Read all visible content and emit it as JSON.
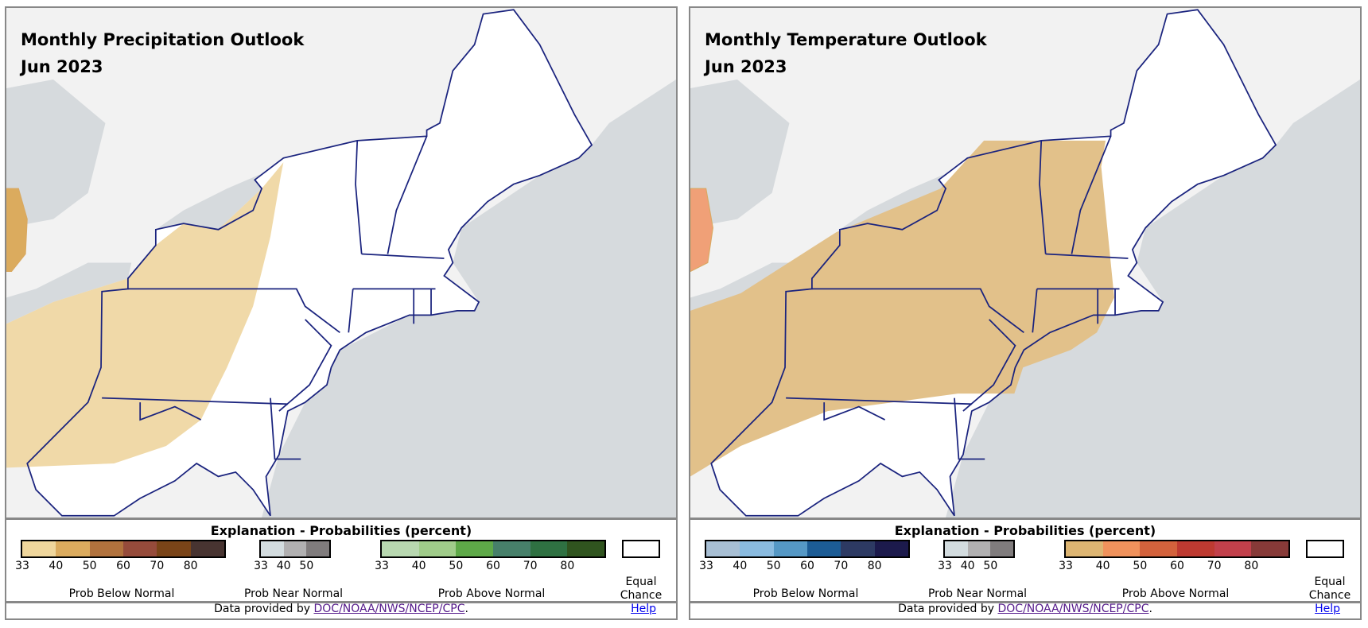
{
  "panels": [
    {
      "title": "Monthly Precipitation Outlook",
      "period": "Jun 2023",
      "legend": {
        "title": "Explanation - Probabilities (percent)",
        "below": {
          "label": "Prob Below Normal",
          "ticks": [
            "33",
            "40",
            "50",
            "60",
            "70",
            "80"
          ],
          "colors": [
            "#efd69c",
            "#dbab5e",
            "#b1723d",
            "#964b3b",
            "#7a4418",
            "#483431"
          ]
        },
        "near": {
          "label": "Prob Near Normal",
          "ticks": [
            "33",
            "40",
            "50"
          ],
          "colors": [
            "#d3dcdf",
            "#b1b0b1",
            "#807c7d"
          ]
        },
        "above": {
          "label": "Prob Above Normal",
          "ticks": [
            "33",
            "40",
            "50",
            "60",
            "70",
            "80"
          ],
          "colors": [
            "#b8d8b0",
            "#a0cc8a",
            "#5ea948",
            "#47806a",
            "#2f7142",
            "#30541f"
          ]
        },
        "equal": "Equal Chance"
      },
      "footer": {
        "prefix": "Data provided by ",
        "link": "DOC/NOAA/NWS/NCEP/CPC",
        "suffix": ".",
        "help": "Help"
      },
      "shade_colors": {
        "main": "#f0d9a8",
        "blob": "#dbab5e"
      }
    },
    {
      "title": "Monthly Temperature Outlook",
      "period": "Jun 2023",
      "legend": {
        "title": "Explanation - Probabilities (percent)",
        "below": {
          "label": "Prob Below Normal",
          "ticks": [
            "33",
            "40",
            "50",
            "60",
            "70",
            "80"
          ],
          "colors": [
            "#a8bfd4",
            "#8abbe0",
            "#5598c5",
            "#1c5c95",
            "#2d3a63",
            "#1c1a4c"
          ]
        },
        "near": {
          "label": "Prob Near Normal",
          "ticks": [
            "33",
            "40",
            "50"
          ],
          "colors": [
            "#d3dcdf",
            "#b1b0b1",
            "#807c7d"
          ]
        },
        "above": {
          "label": "Prob Above Normal",
          "ticks": [
            "33",
            "40",
            "50",
            "60",
            "70",
            "80"
          ],
          "colors": [
            "#ddb572",
            "#f0925c",
            "#d3623c",
            "#be3a31",
            "#c2404b",
            "#873a38"
          ]
        },
        "equal": "Equal Chance"
      },
      "footer": {
        "prefix": "Data provided by ",
        "link": "DOC/NOAA/NWS/NCEP/CPC",
        "suffix": ".",
        "help": "Help"
      },
      "shade_colors": {
        "main": "#e2c18a",
        "blob": "#f0a077"
      }
    }
  ]
}
